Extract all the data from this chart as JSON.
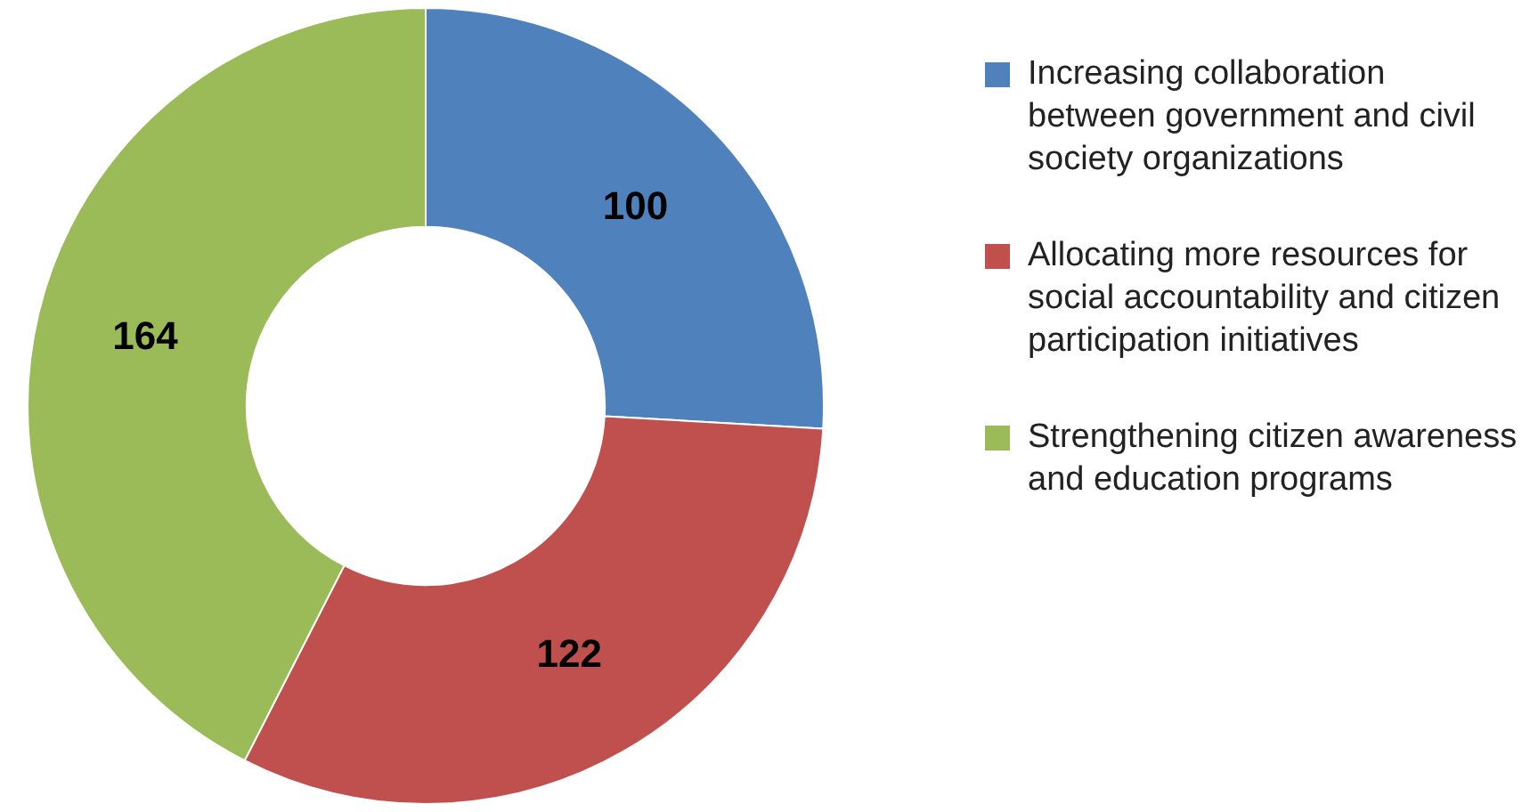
{
  "chart_data": {
    "type": "donut",
    "categories": [
      "Increasing collaboration between government and civil society organizations",
      "Allocating more resources for social accountability and citizen participation initiatives",
      "Strengthening citizen awareness and education programs"
    ],
    "values": [
      100,
      122,
      164
    ],
    "colors": [
      "#4f81bd",
      "#c0504d",
      "#9bbb59"
    ],
    "data_labels": true,
    "legend": "right"
  }
}
